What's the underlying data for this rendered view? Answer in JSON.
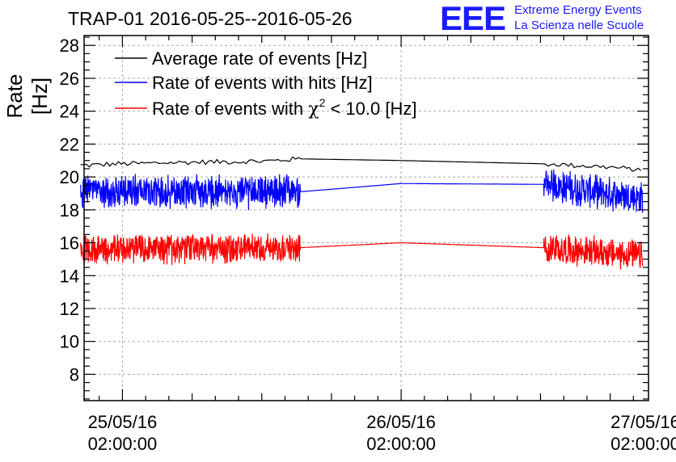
{
  "title": "TRAP-01 2016-05-25--2016-05-26",
  "logo": {
    "mark": "EEE",
    "line1": "Extreme Energy Events",
    "line2": "La Scienza nelle Scuole"
  },
  "chart_data": {
    "type": "line",
    "ylabel": "Rate [Hz]",
    "ylim": [
      6.4,
      28.6
    ],
    "yticks": [
      8,
      10,
      12,
      14,
      16,
      18,
      20,
      22,
      24,
      26,
      28
    ],
    "xlim_hours": [
      -3.3,
      45.3
    ],
    "x_ticks": [
      {
        "hour": 0,
        "date": "25/05/16",
        "time": "02:00:00"
      },
      {
        "hour": 24,
        "date": "26/05/16",
        "time": "02:00:00"
      },
      {
        "hour": 48,
        "date": "27/05/16",
        "time": "02:00:00"
      }
    ],
    "grid": true,
    "legend_position": "top-left",
    "data_gap_hours": [
      15.3,
      36.3
    ],
    "series": [
      {
        "name": "Average rate of events [Hz]",
        "color": "#000000",
        "noise": 0.18,
        "points": [
          [
            -3.6,
            20.7
          ],
          [
            0,
            20.8
          ],
          [
            6,
            20.9
          ],
          [
            12,
            20.95
          ],
          [
            15.3,
            21.1
          ],
          [
            24,
            21.0
          ],
          [
            36.3,
            20.8
          ],
          [
            42,
            20.6
          ],
          [
            44.8,
            20.4
          ]
        ]
      },
      {
        "name": "Rate of events with hits [Hz]",
        "color": "#0000ff",
        "noise": 1.1,
        "points": [
          [
            -3.6,
            19.1
          ],
          [
            15.3,
            19.1
          ],
          [
            24,
            19.6
          ],
          [
            36.3,
            19.55
          ],
          [
            44.8,
            18.7
          ]
        ]
      },
      {
        "name": "Rate of events with χ² < 10.0 [Hz]",
        "legend_parts": [
          "Rate of events with ",
          "χ",
          "2",
          " < 10.0 [Hz]"
        ],
        "color": "#ff0000",
        "noise": 1.0,
        "points": [
          [
            -3.6,
            15.6
          ],
          [
            15.3,
            15.7
          ],
          [
            24,
            16.0
          ],
          [
            36.3,
            15.7
          ],
          [
            44.8,
            15.2
          ]
        ]
      }
    ]
  }
}
